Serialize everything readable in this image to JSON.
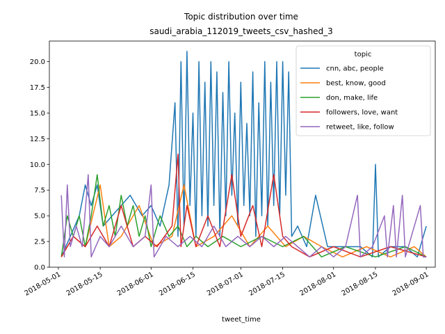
{
  "chart_data": {
    "type": "line",
    "title": "Topic distribution over time",
    "subtitle": "saudi_arabia_112019_tweets_csv_hashed_3",
    "xlabel": "tweet_time",
    "ylabel": "",
    "x_range": [
      "2018-04-28",
      "2018-09-04"
    ],
    "ylim": [
      0,
      22
    ],
    "x_ticks": [
      "2018-05-01",
      "2018-05-15",
      "2018-06-01",
      "2018-06-15",
      "2018-07-01",
      "2018-07-15",
      "2018-08-01",
      "2018-08-15",
      "2018-09-01"
    ],
    "y_ticks": [
      0.0,
      2.5,
      5.0,
      7.5,
      10.0,
      12.5,
      15.0,
      17.5,
      20.0
    ],
    "y_tick_labels": [
      "0.0",
      "2.5",
      "5.0",
      "7.5",
      "10.0",
      "12.5",
      "15.0",
      "17.5",
      "20.0"
    ],
    "grid": false,
    "legend_title": "topic",
    "legend_position": "top-right",
    "series": [
      {
        "name": "cnn, abc, people",
        "color": "#1f77b4",
        "points": [
          [
            "2018-05-02",
            1
          ],
          [
            "2018-05-05",
            3
          ],
          [
            "2018-05-08",
            5
          ],
          [
            "2018-05-10",
            8
          ],
          [
            "2018-05-12",
            6
          ],
          [
            "2018-05-14",
            8
          ],
          [
            "2018-05-16",
            4
          ],
          [
            "2018-05-19",
            5
          ],
          [
            "2018-05-22",
            6
          ],
          [
            "2018-05-25",
            7
          ],
          [
            "2018-05-29",
            5
          ],
          [
            "2018-06-01",
            6
          ],
          [
            "2018-06-04",
            4
          ],
          [
            "2018-06-07",
            8
          ],
          [
            "2018-06-09",
            16
          ],
          [
            "2018-06-10",
            3
          ],
          [
            "2018-06-11",
            20
          ],
          [
            "2018-06-12",
            4
          ],
          [
            "2018-06-13",
            21
          ],
          [
            "2018-06-14",
            6
          ],
          [
            "2018-06-15",
            15
          ],
          [
            "2018-06-16",
            3
          ],
          [
            "2018-06-17",
            20
          ],
          [
            "2018-06-18",
            5
          ],
          [
            "2018-06-19",
            18
          ],
          [
            "2018-06-20",
            4
          ],
          [
            "2018-06-21",
            20
          ],
          [
            "2018-06-22",
            6
          ],
          [
            "2018-06-23",
            19
          ],
          [
            "2018-06-24",
            3
          ],
          [
            "2018-06-25",
            17
          ],
          [
            "2018-06-26",
            5
          ],
          [
            "2018-06-27",
            20
          ],
          [
            "2018-06-28",
            7
          ],
          [
            "2018-06-29",
            15
          ],
          [
            "2018-06-30",
            4
          ],
          [
            "2018-07-01",
            18
          ],
          [
            "2018-07-02",
            6
          ],
          [
            "2018-07-03",
            14
          ],
          [
            "2018-07-04",
            5
          ],
          [
            "2018-07-05",
            19
          ],
          [
            "2018-07-06",
            3
          ],
          [
            "2018-07-07",
            16
          ],
          [
            "2018-07-08",
            5
          ],
          [
            "2018-07-09",
            20
          ],
          [
            "2018-07-10",
            4
          ],
          [
            "2018-07-11",
            18
          ],
          [
            "2018-07-12",
            6
          ],
          [
            "2018-07-13",
            20
          ],
          [
            "2018-07-14",
            5
          ],
          [
            "2018-07-15",
            20
          ],
          [
            "2018-07-16",
            7
          ],
          [
            "2018-07-17",
            19
          ],
          [
            "2018-07-18",
            3
          ],
          [
            "2018-07-20",
            4
          ],
          [
            "2018-07-23",
            2
          ],
          [
            "2018-07-26",
            7
          ],
          [
            "2018-07-30",
            2
          ],
          [
            "2018-08-03",
            2
          ],
          [
            "2018-08-07",
            2
          ],
          [
            "2018-08-10",
            2
          ],
          [
            "2018-08-14",
            1
          ],
          [
            "2018-08-15",
            10
          ],
          [
            "2018-08-16",
            1
          ],
          [
            "2018-08-20",
            2
          ],
          [
            "2018-08-25",
            2
          ],
          [
            "2018-08-29",
            1
          ],
          [
            "2018-09-01",
            4
          ]
        ]
      },
      {
        "name": "best, know, good",
        "color": "#ff7f0e",
        "points": [
          [
            "2018-05-02",
            1
          ],
          [
            "2018-05-06",
            3
          ],
          [
            "2018-05-10",
            2
          ],
          [
            "2018-05-15",
            8
          ],
          [
            "2018-05-18",
            2
          ],
          [
            "2018-05-22",
            3
          ],
          [
            "2018-05-28",
            6
          ],
          [
            "2018-06-02",
            2
          ],
          [
            "2018-06-08",
            3
          ],
          [
            "2018-06-12",
            8
          ],
          [
            "2018-06-16",
            2
          ],
          [
            "2018-06-22",
            3
          ],
          [
            "2018-06-28",
            5
          ],
          [
            "2018-07-04",
            2
          ],
          [
            "2018-07-10",
            4
          ],
          [
            "2018-07-16",
            2
          ],
          [
            "2018-07-22",
            3
          ],
          [
            "2018-07-28",
            2
          ],
          [
            "2018-08-04",
            1
          ],
          [
            "2018-08-12",
            2
          ],
          [
            "2018-08-20",
            1
          ],
          [
            "2018-08-28",
            2
          ],
          [
            "2018-09-01",
            1
          ]
        ]
      },
      {
        "name": "don, make, life",
        "color": "#2ca02c",
        "points": [
          [
            "2018-05-02",
            1
          ],
          [
            "2018-05-04",
            5
          ],
          [
            "2018-05-06",
            3
          ],
          [
            "2018-05-08",
            5
          ],
          [
            "2018-05-10",
            2
          ],
          [
            "2018-05-12",
            5
          ],
          [
            "2018-05-14",
            9
          ],
          [
            "2018-05-16",
            4
          ],
          [
            "2018-05-18",
            6
          ],
          [
            "2018-05-20",
            3
          ],
          [
            "2018-05-22",
            7
          ],
          [
            "2018-05-24",
            4
          ],
          [
            "2018-05-26",
            6
          ],
          [
            "2018-05-28",
            3
          ],
          [
            "2018-05-30",
            5
          ],
          [
            "2018-06-01",
            2
          ],
          [
            "2018-06-04",
            5
          ],
          [
            "2018-06-07",
            3
          ],
          [
            "2018-06-10",
            4
          ],
          [
            "2018-06-13",
            2
          ],
          [
            "2018-06-16",
            3
          ],
          [
            "2018-06-20",
            2
          ],
          [
            "2018-06-25",
            3
          ],
          [
            "2018-07-01",
            2
          ],
          [
            "2018-07-08",
            3
          ],
          [
            "2018-07-15",
            2
          ],
          [
            "2018-07-22",
            3
          ],
          [
            "2018-07-28",
            1
          ],
          [
            "2018-08-05",
            2
          ],
          [
            "2018-08-15",
            1
          ],
          [
            "2018-08-25",
            2
          ],
          [
            "2018-09-01",
            1
          ]
        ]
      },
      {
        "name": "followers, love, want",
        "color": "#d62728",
        "points": [
          [
            "2018-05-02",
            1
          ],
          [
            "2018-05-06",
            3
          ],
          [
            "2018-05-10",
            2
          ],
          [
            "2018-05-14",
            4
          ],
          [
            "2018-05-18",
            2
          ],
          [
            "2018-05-22",
            6
          ],
          [
            "2018-05-26",
            2
          ],
          [
            "2018-05-30",
            3
          ],
          [
            "2018-06-03",
            2
          ],
          [
            "2018-06-08",
            4
          ],
          [
            "2018-06-10",
            11
          ],
          [
            "2018-06-11",
            2
          ],
          [
            "2018-06-13",
            6
          ],
          [
            "2018-06-16",
            2
          ],
          [
            "2018-06-20",
            5
          ],
          [
            "2018-06-24",
            2
          ],
          [
            "2018-06-28",
            9
          ],
          [
            "2018-07-01",
            3
          ],
          [
            "2018-07-05",
            6
          ],
          [
            "2018-07-08",
            2
          ],
          [
            "2018-07-12",
            9
          ],
          [
            "2018-07-15",
            3
          ],
          [
            "2018-07-18",
            2
          ],
          [
            "2018-07-24",
            1
          ],
          [
            "2018-08-01",
            2
          ],
          [
            "2018-08-10",
            1
          ],
          [
            "2018-08-20",
            2
          ],
          [
            "2018-09-01",
            1
          ]
        ]
      },
      {
        "name": "retweet, like, follow",
        "color": "#9467bd",
        "points": [
          [
            "2018-05-02",
            7
          ],
          [
            "2018-05-03",
            1
          ],
          [
            "2018-05-04",
            8
          ],
          [
            "2018-05-05",
            2
          ],
          [
            "2018-05-07",
            4
          ],
          [
            "2018-05-09",
            2
          ],
          [
            "2018-05-11",
            9
          ],
          [
            "2018-05-12",
            1
          ],
          [
            "2018-05-15",
            3
          ],
          [
            "2018-05-18",
            2
          ],
          [
            "2018-05-22",
            4
          ],
          [
            "2018-05-26",
            2
          ],
          [
            "2018-05-30",
            3
          ],
          [
            "2018-06-01",
            8
          ],
          [
            "2018-06-02",
            1
          ],
          [
            "2018-06-06",
            3
          ],
          [
            "2018-06-10",
            2
          ],
          [
            "2018-06-14",
            3
          ],
          [
            "2018-06-18",
            2
          ],
          [
            "2018-06-22",
            4
          ],
          [
            "2018-06-26",
            2
          ],
          [
            "2018-06-30",
            3
          ],
          [
            "2018-07-04",
            2
          ],
          [
            "2018-07-08",
            3
          ],
          [
            "2018-07-12",
            2
          ],
          [
            "2018-07-16",
            3
          ],
          [
            "2018-07-20",
            2
          ],
          [
            "2018-07-24",
            1
          ],
          [
            "2018-07-28",
            2
          ],
          [
            "2018-08-01",
            1
          ],
          [
            "2018-08-05",
            2
          ],
          [
            "2018-08-09",
            7
          ],
          [
            "2018-08-10",
            1
          ],
          [
            "2018-08-14",
            2
          ],
          [
            "2018-08-18",
            5
          ],
          [
            "2018-08-19",
            1
          ],
          [
            "2018-08-21",
            6
          ],
          [
            "2018-08-22",
            1
          ],
          [
            "2018-08-24",
            7
          ],
          [
            "2018-08-25",
            1
          ],
          [
            "2018-08-27",
            3
          ],
          [
            "2018-08-30",
            6
          ],
          [
            "2018-08-31",
            1
          ],
          [
            "2018-09-01",
            1
          ]
        ]
      }
    ]
  }
}
